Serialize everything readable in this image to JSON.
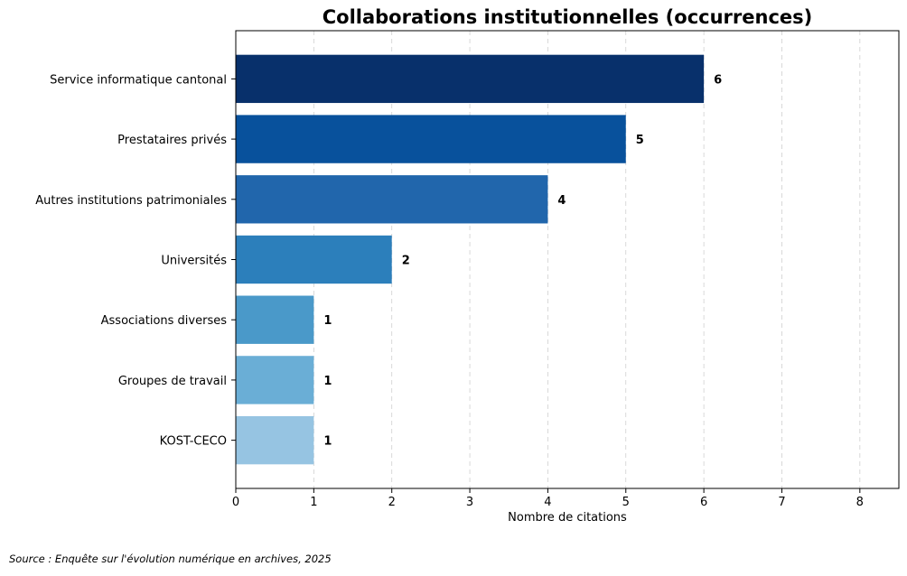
{
  "chart_data": {
    "type": "bar",
    "orientation": "horizontal",
    "title": "Collaborations institutionnelles (occurrences)",
    "xlabel": "Nombre de citations",
    "ylabel": "",
    "xlim": [
      0,
      8.5
    ],
    "xticks": [
      0,
      1,
      2,
      3,
      4,
      5,
      6,
      7,
      8
    ],
    "grid": "vertical-dashed",
    "categories": [
      "Service informatique cantonal",
      "Prestataires privés",
      "Autres institutions patrimoniales",
      "Universités",
      "Associations diverses",
      "Groupes de travail",
      "KOST-CECO"
    ],
    "values": [
      6,
      5,
      4,
      2,
      1,
      1,
      1
    ],
    "colors": [
      "#08306b",
      "#08519c",
      "#2166ac",
      "#2c7fbb",
      "#4a99c9",
      "#6aaed6",
      "#96c4e2"
    ]
  },
  "source_note": "Source : Enquête sur l'évolution numérique en archives, 2025"
}
